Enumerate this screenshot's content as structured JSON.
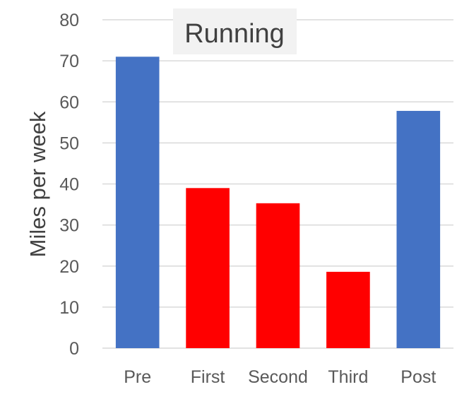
{
  "chart_data": {
    "type": "bar",
    "title": "Running",
    "xlabel": "",
    "ylabel": "Miles per week",
    "categories": [
      "Pre",
      "First",
      "Second",
      "Third",
      "Post"
    ],
    "values": [
      71,
      39,
      35.3,
      18.6,
      57.8
    ],
    "bar_colors": [
      "#4472C4",
      "#FF0000",
      "#FF0000",
      "#FF0000",
      "#4472C4"
    ],
    "ylim": [
      0,
      80
    ],
    "yticks": [
      "0",
      "10",
      "20",
      "30",
      "40",
      "50",
      "60",
      "70",
      "80"
    ],
    "grid": true,
    "legend": "none"
  },
  "colors": {
    "grid": "#D9D9D9",
    "title_background": "#F2F2F2"
  }
}
